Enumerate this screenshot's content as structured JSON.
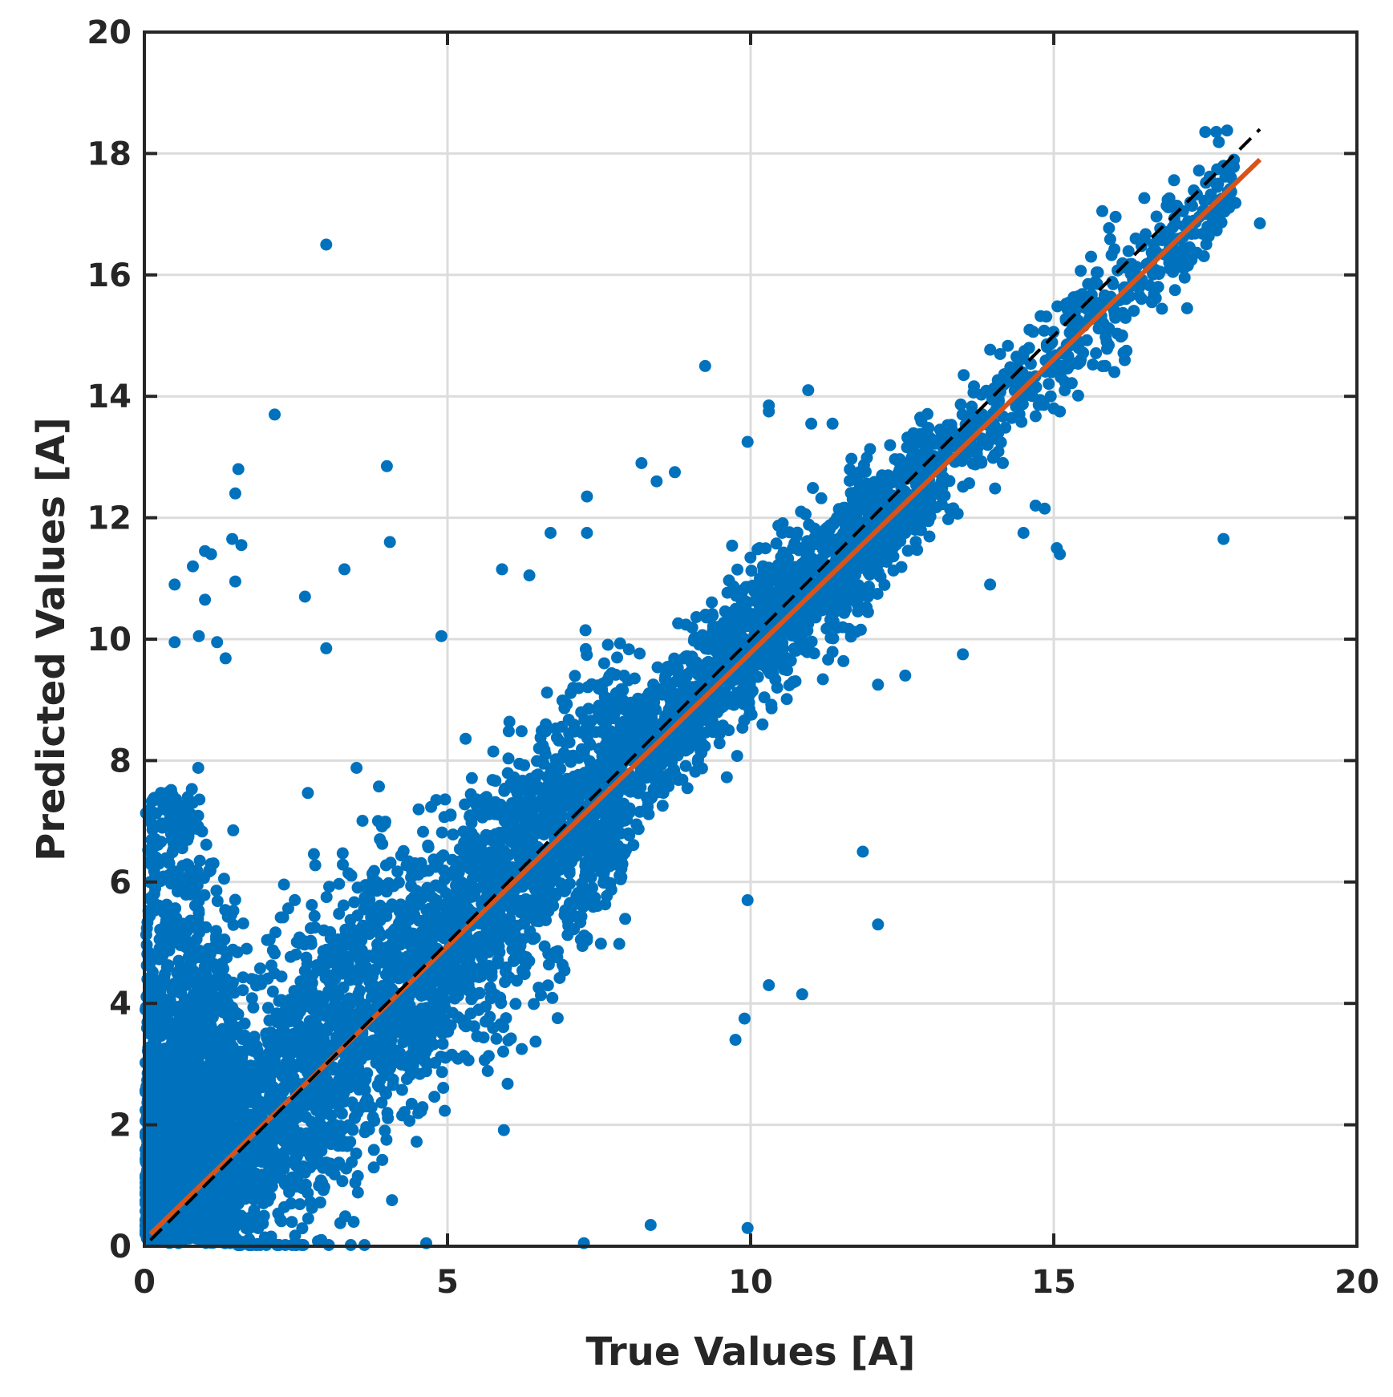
{
  "chart_data": {
    "type": "scatter",
    "xlabel": "True Values [A]",
    "ylabel": "Predicted Values [A]",
    "xlim": [
      0,
      20
    ],
    "ylim": [
      0,
      20
    ],
    "xticks": [
      "0",
      "5",
      "10",
      "15",
      "20"
    ],
    "yticks": [
      "0",
      "2",
      "4",
      "6",
      "8",
      "10",
      "12",
      "14",
      "16",
      "18",
      "20"
    ],
    "grid": true,
    "colors": {
      "points": "#0072bd",
      "fit_line": "#d95319",
      "identity_line": "#000000",
      "grid": "#dcdcdc",
      "axis": "#262626"
    },
    "fit_line": {
      "x": [
        0.1,
        18.4
      ],
      "y": [
        0.2,
        17.9
      ]
    },
    "identity_line": {
      "x": [
        0.1,
        18.4
      ],
      "y": [
        0.1,
        18.4
      ]
    },
    "outliers": [
      [
        3.0,
        16.5
      ],
      [
        2.15,
        13.7
      ],
      [
        1.55,
        12.8
      ],
      [
        4.0,
        12.85
      ],
      [
        1.5,
        12.4
      ],
      [
        1.45,
        11.65
      ],
      [
        1.6,
        11.55
      ],
      [
        4.05,
        11.6
      ],
      [
        1.0,
        11.45
      ],
      [
        1.1,
        11.4
      ],
      [
        0.8,
        11.2
      ],
      [
        3.3,
        11.15
      ],
      [
        1.5,
        10.95
      ],
      [
        0.5,
        10.9
      ],
      [
        1.0,
        10.65
      ],
      [
        2.65,
        10.7
      ],
      [
        0.5,
        9.95
      ],
      [
        0.9,
        10.05
      ],
      [
        1.2,
        9.95
      ],
      [
        3.0,
        9.85
      ],
      [
        4.9,
        10.05
      ],
      [
        5.9,
        11.15
      ],
      [
        6.35,
        11.05
      ],
      [
        6.7,
        11.75
      ],
      [
        7.3,
        12.35
      ],
      [
        7.3,
        11.75
      ],
      [
        8.2,
        12.9
      ],
      [
        8.45,
        12.6
      ],
      [
        8.75,
        12.75
      ],
      [
        9.25,
        14.5
      ],
      [
        10.3,
        13.85
      ],
      [
        10.3,
        13.75
      ],
      [
        10.95,
        14.1
      ],
      [
        11.0,
        13.55
      ],
      [
        11.35,
        13.55
      ],
      [
        9.95,
        13.25
      ],
      [
        16.0,
        14.4
      ],
      [
        14.5,
        11.75
      ],
      [
        14.7,
        12.2
      ],
      [
        14.85,
        12.15
      ],
      [
        15.1,
        11.4
      ],
      [
        15.05,
        11.5
      ],
      [
        13.95,
        10.9
      ],
      [
        13.5,
        9.75
      ],
      [
        12.1,
        9.25
      ],
      [
        12.55,
        9.4
      ],
      [
        11.85,
        6.5
      ],
      [
        12.1,
        5.3
      ],
      [
        10.85,
        4.15
      ],
      [
        10.3,
        4.3
      ],
      [
        9.95,
        5.7
      ],
      [
        9.75,
        3.4
      ],
      [
        9.9,
        3.75
      ],
      [
        9.95,
        0.3
      ],
      [
        7.25,
        0.05
      ],
      [
        8.35,
        0.35
      ],
      [
        4.65,
        0.05
      ],
      [
        17.7,
        17.45
      ],
      [
        18.4,
        16.85
      ],
      [
        17.5,
        16.7
      ],
      [
        17.2,
        15.45
      ],
      [
        17.0,
        15.75
      ],
      [
        17.8,
        11.65
      ],
      [
        15.8,
        17.05
      ],
      [
        16.2,
        14.75
      ],
      [
        15.85,
        14.5
      ],
      [
        15.0,
        13.8
      ],
      [
        15.1,
        13.75
      ],
      [
        14.95,
        14.0
      ],
      [
        16.35,
        16.6
      ]
    ]
  }
}
